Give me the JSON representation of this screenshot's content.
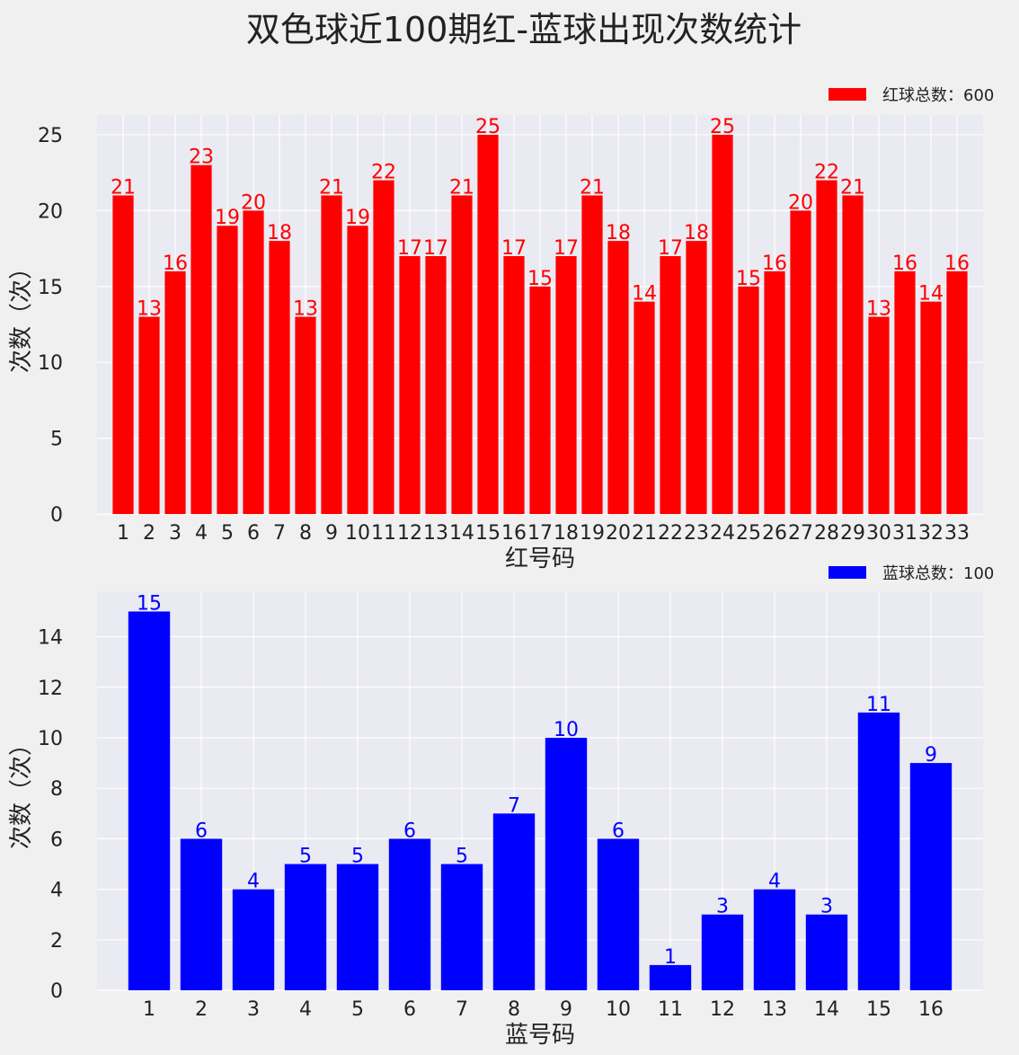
{
  "title": "双色球近100期红-蓝球出现次数统计",
  "chart_data": [
    {
      "type": "bar",
      "id": "red",
      "color": "#ff0000",
      "background": "#eaeaf2",
      "grid": true,
      "categories": [
        "1",
        "2",
        "3",
        "4",
        "5",
        "6",
        "7",
        "8",
        "9",
        "10",
        "11",
        "12",
        "13",
        "14",
        "15",
        "16",
        "17",
        "18",
        "19",
        "20",
        "21",
        "22",
        "23",
        "24",
        "25",
        "26",
        "27",
        "28",
        "29",
        "30",
        "31",
        "32",
        "33"
      ],
      "values": [
        21,
        13,
        16,
        23,
        19,
        20,
        18,
        13,
        21,
        19,
        22,
        17,
        17,
        21,
        25,
        17,
        15,
        17,
        21,
        18,
        14,
        17,
        18,
        25,
        15,
        16,
        20,
        22,
        21,
        13,
        16,
        14,
        16
      ],
      "xlabel": "红号码",
      "ylabel": "次数（次）",
      "yticks": [
        0,
        5,
        10,
        15,
        20,
        25
      ],
      "ylim": [
        0,
        26.3
      ],
      "legend": "红球总数：600",
      "legend_position": "top-right"
    },
    {
      "type": "bar",
      "id": "blue",
      "color": "#0000ff",
      "background": "#eaeaf2",
      "grid": true,
      "categories": [
        "1",
        "2",
        "3",
        "4",
        "5",
        "6",
        "7",
        "8",
        "9",
        "10",
        "11",
        "12",
        "13",
        "14",
        "15",
        "16"
      ],
      "values": [
        15,
        6,
        4,
        5,
        5,
        6,
        5,
        7,
        10,
        6,
        1,
        3,
        4,
        3,
        11,
        9
      ],
      "xlabel": "蓝号码",
      "ylabel": "次数（次）",
      "yticks": [
        0,
        2,
        4,
        6,
        8,
        10,
        12,
        14
      ],
      "ylim": [
        0,
        15.8
      ],
      "legend": "蓝球总数：100",
      "legend_position": "top-right"
    }
  ]
}
